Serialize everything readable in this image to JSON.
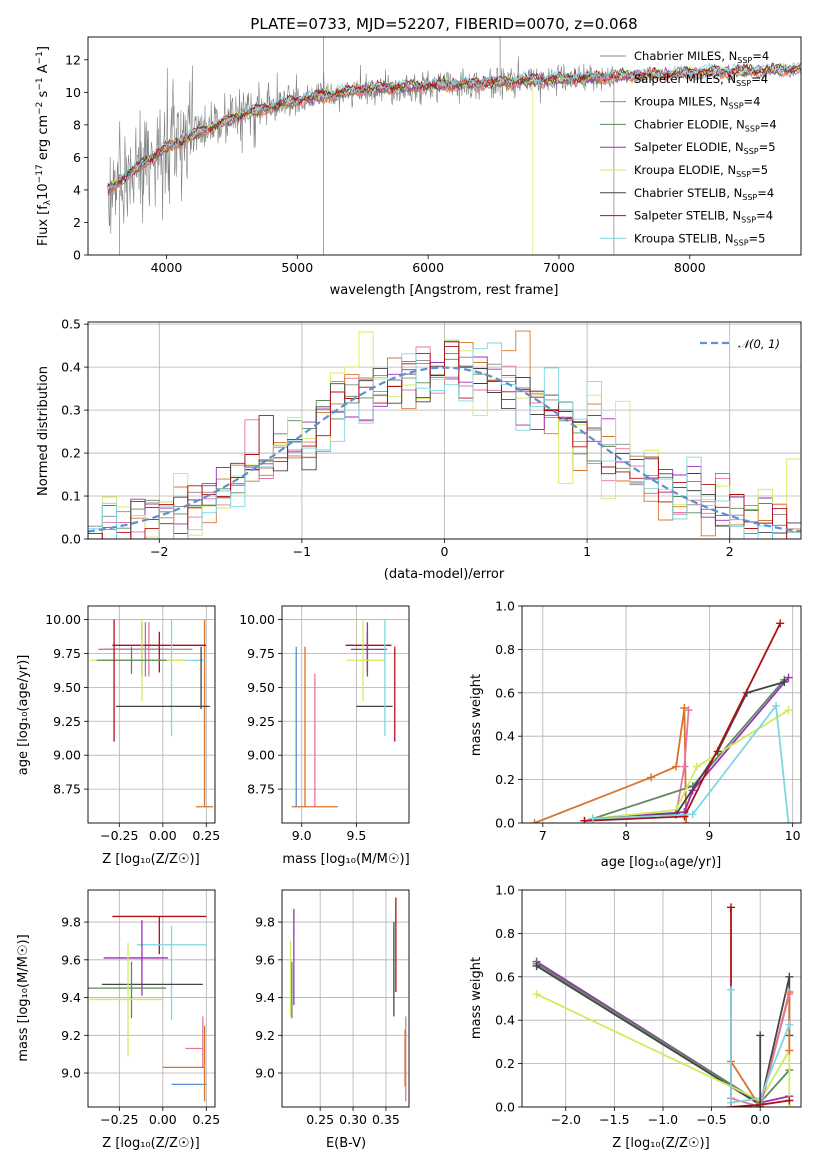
{
  "chart_data": [
    {
      "id": "spectrum",
      "type": "line",
      "title": "PLATE=0733, MJD=52207, FIBERID=0070, z=0.068",
      "xlabel": "wavelength [Angstrom, rest frame]",
      "ylabel_parts": {
        "a": "Flux [f",
        "b": "λ",
        "c": "10",
        "d": "−17",
        "e": " erg cm",
        "f": "−2",
        "g": " s",
        "h": "−1",
        "i": " A",
        "j": "−1",
        "k": "]"
      },
      "xlim": [
        3400,
        8850
      ],
      "ylim": [
        0,
        13.4
      ],
      "xticks": [
        4000,
        5000,
        6000,
        7000,
        8000
      ],
      "yticks": [
        0,
        2,
        4,
        6,
        8,
        10,
        12
      ],
      "grid": false,
      "legend_placement": "upper-right",
      "data_series": {
        "name": "data",
        "color": "#808080"
      },
      "model_series": [
        {
          "imf": "Chabrier",
          "lib": "MILES",
          "n": "4",
          "color": "#888888"
        },
        {
          "imf": "Salpeter",
          "lib": "MILES",
          "n": "4",
          "color": "#e377a0"
        },
        {
          "imf": "Kroupa",
          "lib": "MILES",
          "n": "4",
          "color": "#d9742e"
        },
        {
          "imf": "Chabrier",
          "lib": "ELODIE",
          "n": "4",
          "color": "#5b8a5c"
        },
        {
          "imf": "Salpeter",
          "lib": "ELODIE",
          "n": "5",
          "color": "#9b2fb8"
        },
        {
          "imf": "Kroupa",
          "lib": "ELODIE",
          "n": "5",
          "color": "#d4ea5e"
        },
        {
          "imf": "Chabrier",
          "lib": "STELIB",
          "n": "4",
          "color": "#444444"
        },
        {
          "imf": "Salpeter",
          "lib": "STELIB",
          "n": "4",
          "color": "#b01015"
        },
        {
          "imf": "Kroupa",
          "lib": "STELIB",
          "n": "5",
          "color": "#7fd7e0"
        }
      ],
      "legend_sub": "SSP",
      "continuum": {
        "x": [
          3550,
          3800,
          4000,
          4300,
          4600,
          5000,
          5500,
          6000,
          6500,
          7000,
          7500,
          8000,
          8800
        ],
        "y": [
          4.0,
          5.5,
          6.6,
          7.7,
          8.7,
          9.5,
          10.2,
          10.4,
          10.6,
          10.8,
          11.0,
          11.2,
          11.4
        ]
      }
    },
    {
      "id": "residuals",
      "type": "histogram",
      "xlabel": "(data-model)/error",
      "ylabel": "Normed distribution",
      "xlim": [
        -2.5,
        2.5
      ],
      "ylim": [
        0,
        0.505
      ],
      "xticks": [
        -2,
        -1,
        0,
        1,
        2
      ],
      "yticks": [
        0.0,
        0.1,
        0.2,
        0.3,
        0.4,
        0.5
      ],
      "grid": true,
      "legend": {
        "label": "𝒩(0, 1)",
        "placement": "upper-right",
        "color": "#5b8fd6"
      },
      "bin_width": 0.1
    },
    {
      "id": "age-vs-Z",
      "type": "errorbar",
      "xlabel": "Z [log₁₀(Z/Z☉)]",
      "ylabel": "age  [log₁₀(age/yr)]",
      "xlim": [
        -0.43,
        0.3
      ],
      "ylim": [
        8.5,
        10.1
      ],
      "xticks": [
        -0.25,
        0.0,
        0.25
      ],
      "yticks": [
        8.75,
        9.0,
        9.25,
        9.5,
        9.75,
        10.0
      ],
      "grid": true,
      "points": [
        {
          "x": 0.24,
          "y": 8.62,
          "xerr": [
            0.05,
            0.05
          ],
          "yerr": [
            0.0,
            1.38
          ],
          "color": "#d9742e"
        },
        {
          "x": -0.1,
          "y": 9.78,
          "xerr": [
            0.27,
            0.27
          ],
          "yerr": [
            0.2,
            0.2
          ],
          "color": "#888888"
        },
        {
          "x": -0.12,
          "y": 9.78,
          "xerr": [
            0.22,
            0.15
          ],
          "yerr": [
            0.2,
            0.2
          ],
          "color": "#9b2fb8"
        },
        {
          "x": -0.08,
          "y": 9.78,
          "xerr": [
            0.27,
            0.24
          ],
          "yerr": [
            0.2,
            0.2
          ],
          "color": "#e377a0"
        },
        {
          "x": -0.02,
          "y": 9.81,
          "xerr": [
            0.27,
            0.27
          ],
          "yerr": [
            0.2,
            0.1
          ],
          "color": "#b01015"
        },
        {
          "x": 0.05,
          "y": 9.7,
          "xerr": [
            0.2,
            0.2
          ],
          "yerr": [
            0.56,
            0.3
          ],
          "color": "#7fd7e0"
        },
        {
          "x": -0.12,
          "y": 9.7,
          "xerr": [
            0.3,
            0.25
          ],
          "yerr": [
            0.3,
            0.3
          ],
          "color": "#d4ea5e"
        },
        {
          "x": -0.18,
          "y": 9.7,
          "xerr": [
            0.2,
            0.2
          ],
          "yerr": [
            0.1,
            0.1
          ],
          "color": "#5b8a5c"
        },
        {
          "x": -0.28,
          "y": 9.55,
          "xerr": [
            0.0,
            0.0
          ],
          "yerr": [
            0.45,
            0.45
          ],
          "color": "#b01015"
        },
        {
          "x": 0.0,
          "y": 9.36,
          "xerr": [
            0.27,
            0.27
          ],
          "yerr": [
            0.0,
            0.0
          ],
          "color": "#444444"
        },
        {
          "x": 0.22,
          "y": 9.6,
          "xerr": [
            0.0,
            0.0
          ],
          "yerr": [
            0.26,
            0.2
          ],
          "color": "#444444"
        }
      ]
    },
    {
      "id": "age-vs-mass",
      "type": "errorbar",
      "xlabel": "mass [log₁₀(M/M☉)]",
      "xlim": [
        8.82,
        9.98
      ],
      "ylim": [
        8.5,
        10.1
      ],
      "xticks": [
        9.0,
        9.5
      ],
      "yticks": [
        8.75,
        9.0,
        9.25,
        9.5,
        9.75,
        10.0
      ],
      "grid": true,
      "points": [
        {
          "x": 9.03,
          "y": 8.62,
          "xerr": [
            0.12,
            0.3
          ],
          "yerr": [
            0.0,
            1.18
          ],
          "color": "#d9742e"
        },
        {
          "x": 8.95,
          "y": 9.2,
          "xerr": [
            0.0,
            0.0
          ],
          "yerr": [
            0.58,
            0.6
          ],
          "color": "#5b8fd6"
        },
        {
          "x": 9.12,
          "y": 9.1,
          "xerr": [
            0.0,
            0.0
          ],
          "yerr": [
            0.48,
            0.5
          ],
          "color": "#e377a0"
        },
        {
          "x": 9.6,
          "y": 9.81,
          "xerr": [
            0.2,
            0.22
          ],
          "yerr": [
            0.2,
            0.1
          ],
          "color": "#b01015"
        },
        {
          "x": 9.6,
          "y": 9.78,
          "xerr": [
            0.15,
            0.18
          ],
          "yerr": [
            0.2,
            0.2
          ],
          "color": "#9b2fb8"
        },
        {
          "x": 9.56,
          "y": 9.7,
          "xerr": [
            0.15,
            0.2
          ],
          "yerr": [
            0.3,
            0.3
          ],
          "color": "#d4ea5e"
        },
        {
          "x": 9.63,
          "y": 9.36,
          "xerr": [
            0.13,
            0.2
          ],
          "yerr": [
            0.0,
            0.0
          ],
          "color": "#444444"
        },
        {
          "x": 9.76,
          "y": 9.7,
          "xerr": [
            0.0,
            0.0
          ],
          "yerr": [
            0.56,
            0.3
          ],
          "color": "#7fd7e0"
        },
        {
          "x": 9.85,
          "y": 9.6,
          "xerr": [
            0.0,
            0.0
          ],
          "yerr": [
            0.5,
            0.2
          ],
          "color": "#b01015"
        }
      ]
    },
    {
      "id": "weight-vs-age",
      "type": "line",
      "xlabel": "age  [log₁₀(age/yr)]",
      "ylabel": "mass weight",
      "xlim": [
        6.75,
        10.1
      ],
      "ylim": [
        0,
        1.0
      ],
      "xticks": [
        7,
        8,
        9,
        10
      ],
      "yticks": [
        0.0,
        0.2,
        0.4,
        0.6,
        0.8,
        1.0
      ],
      "grid": true,
      "series": [
        {
          "color": "#d9742e",
          "x": [
            6.9,
            8.3,
            8.6,
            8.7,
            8.72
          ],
          "y": [
            0.0,
            0.21,
            0.26,
            0.53,
            0.0
          ]
        },
        {
          "color": "#e377a0",
          "x": [
            7.5,
            8.6,
            8.7,
            8.75
          ],
          "y": [
            0.01,
            0.04,
            0.26,
            0.52
          ]
        },
        {
          "color": "#5b8a5c",
          "x": [
            7.6,
            8.8,
            9.9
          ],
          "y": [
            0.02,
            0.17,
            0.66
          ]
        },
        {
          "color": "#9b2fb8",
          "x": [
            7.6,
            8.7,
            8.8,
            9.95
          ],
          "y": [
            0.02,
            0.05,
            0.15,
            0.67
          ]
        },
        {
          "color": "#d4ea5e",
          "x": [
            7.6,
            8.6,
            8.85,
            9.95
          ],
          "y": [
            0.02,
            0.06,
            0.26,
            0.52
          ]
        },
        {
          "color": "#444444",
          "x": [
            7.6,
            8.6,
            9.1,
            9.45,
            9.9
          ],
          "y": [
            0.02,
            0.04,
            0.33,
            0.6,
            0.65
          ]
        },
        {
          "color": "#b01015",
          "x": [
            7.5,
            8.7,
            9.85
          ],
          "y": [
            0.01,
            0.03,
            0.92
          ]
        },
        {
          "color": "#7fd7e0",
          "x": [
            7.6,
            8.8,
            9.8,
            9.95
          ],
          "y": [
            0.02,
            0.04,
            0.54,
            0.0
          ]
        }
      ]
    },
    {
      "id": "mass-vs-Z",
      "type": "errorbar",
      "xlabel": "Z [log₁₀(Z/Z☉)]",
      "ylabel": "mass [log₁₀(M/M☉)]",
      "xlim": [
        -0.43,
        0.3
      ],
      "ylim": [
        8.82,
        9.97
      ],
      "xticks": [
        -0.25,
        0.0,
        0.25
      ],
      "yticks": [
        9.0,
        9.2,
        9.4,
        9.6,
        9.8
      ],
      "grid": true,
      "points": [
        {
          "x": -0.02,
          "y": 9.83,
          "xerr": [
            0.27,
            0.27
          ],
          "yerr": [
            0.2,
            0.0
          ],
          "color": "#b01015"
        },
        {
          "x": 0.05,
          "y": 9.68,
          "xerr": [
            0.2,
            0.2
          ],
          "yerr": [
            0.4,
            0.1
          ],
          "color": "#7fd7e0"
        },
        {
          "x": -0.12,
          "y": 9.61,
          "xerr": [
            0.22,
            0.15
          ],
          "yerr": [
            0.2,
            0.2
          ],
          "color": "#9b2fb8"
        },
        {
          "x": -0.1,
          "y": 9.47,
          "xerr": [
            0.25,
            0.33
          ],
          "yerr": [
            0.0,
            0.0
          ],
          "color": "#444444"
        },
        {
          "x": -0.18,
          "y": 9.45,
          "xerr": [
            0.25,
            0.2
          ],
          "yerr": [
            0.16,
            0.14
          ],
          "color": "#5b8a5c"
        },
        {
          "x": -0.2,
          "y": 9.39,
          "xerr": [
            0.22,
            0.2
          ],
          "yerr": [
            0.3,
            0.3
          ],
          "color": "#d4ea5e"
        },
        {
          "x": 0.23,
          "y": 9.13,
          "xerr": [
            0.1,
            0.0
          ],
          "yerr": [
            0.1,
            0.17
          ],
          "color": "#e377a0"
        },
        {
          "x": 0.12,
          "y": 9.03,
          "xerr": [
            0.12,
            0.12
          ],
          "yerr": [
            0.0,
            0.0
          ],
          "color": "#d9742e"
        },
        {
          "x": 0.15,
          "y": 8.94,
          "xerr": [
            0.1,
            0.1
          ],
          "yerr": [
            0.0,
            0.0
          ],
          "color": "#5b8fd6"
        },
        {
          "x": 0.24,
          "y": 9.05,
          "xerr": [
            0.0,
            0.0
          ],
          "yerr": [
            0.2,
            0.2
          ],
          "color": "#d9742e"
        }
      ]
    },
    {
      "id": "mass-vs-ebv",
      "type": "errorbar",
      "xlabel": "E(B-V)",
      "xlim": [
        0.192,
        0.385
      ],
      "ylim": [
        8.82,
        9.97
      ],
      "xticks": [
        0.25,
        0.3,
        0.35
      ],
      "yticks": [
        9.0,
        9.2,
        9.4,
        9.6,
        9.8
      ],
      "grid": true,
      "points": [
        {
          "x": 0.21,
          "y": 9.61,
          "xerr": [
            0.0,
            0.0
          ],
          "yerr": [
            0.25,
            0.26
          ],
          "color": "#9b2fb8"
        },
        {
          "x": 0.205,
          "y": 9.5,
          "xerr": [
            0.0,
            0.0
          ],
          "yerr": [
            0.2,
            0.2
          ],
          "color": "#d4ea5e"
        },
        {
          "x": 0.207,
          "y": 9.45,
          "xerr": [
            0.0,
            0.0
          ],
          "yerr": [
            0.16,
            0.14
          ],
          "color": "#5b8a5c"
        },
        {
          "x": 0.365,
          "y": 9.83,
          "xerr": [
            0.0,
            0.0
          ],
          "yerr": [
            0.4,
            0.1
          ],
          "color": "#b01015"
        },
        {
          "x": 0.362,
          "y": 9.6,
          "xerr": [
            0.0,
            0.0
          ],
          "yerr": [
            0.3,
            0.2
          ],
          "color": "#444444"
        },
        {
          "x": 0.38,
          "y": 9.05,
          "xerr": [
            0.0,
            0.0
          ],
          "yerr": [
            0.2,
            0.25
          ],
          "color": "#e377a0"
        },
        {
          "x": 0.379,
          "y": 9.03,
          "xerr": [
            0.0,
            0.0
          ],
          "yerr": [
            0.1,
            0.2
          ],
          "color": "#d9742e"
        }
      ]
    },
    {
      "id": "weight-vs-Z",
      "type": "line",
      "xlabel": "Z [log₁₀(Z/Z☉)]",
      "ylabel": "mass weight",
      "xlim": [
        -2.45,
        0.42
      ],
      "ylim": [
        0,
        1.0
      ],
      "xticks": [
        -2.0,
        -1.5,
        -1.0,
        -0.5,
        0.0
      ],
      "yticks": [
        0.0,
        0.2,
        0.4,
        0.6,
        0.8,
        1.0
      ],
      "grid": true,
      "series": [
        {
          "color": "#9b2fb8",
          "x": [
            -2.3,
            0.0,
            0.3
          ],
          "y": [
            0.67,
            0.02,
            0.05
          ]
        },
        {
          "color": "#5b8a5c",
          "x": [
            -2.3,
            0.0,
            0.3
          ],
          "y": [
            0.66,
            0.02,
            0.17
          ]
        },
        {
          "color": "#444444",
          "x": [
            -2.3,
            0.0,
            0.3,
            0.3
          ],
          "y": [
            0.65,
            0.01,
            0.6,
            0.33
          ]
        },
        {
          "color": "#d4ea5e",
          "x": [
            -2.3,
            0.0,
            0.3,
            0.3
          ],
          "y": [
            0.52,
            0.03,
            0.26,
            0.0
          ]
        },
        {
          "color": "#d9742e",
          "x": [
            -0.3,
            0.0,
            0.3,
            0.3
          ],
          "y": [
            0.21,
            0.0,
            0.53,
            0.26
          ]
        },
        {
          "color": "#e377a0",
          "x": [
            -0.3,
            0.0,
            0.3
          ],
          "y": [
            0.04,
            0.0,
            0.52
          ]
        },
        {
          "color": "#b01015",
          "x": [
            -0.3,
            -0.3,
            0.0,
            0.3
          ],
          "y": [
            0.92,
            0.0,
            0.01,
            0.03
          ]
        },
        {
          "color": "#7fd7e0",
          "x": [
            -0.3,
            -0.3,
            0.0,
            0.3
          ],
          "y": [
            0.54,
            0.02,
            0.04,
            0.38
          ]
        },
        {
          "color": "#444444",
          "x": [
            0.0,
            0.0
          ],
          "y": [
            0.33,
            0.0
          ]
        }
      ]
    }
  ]
}
